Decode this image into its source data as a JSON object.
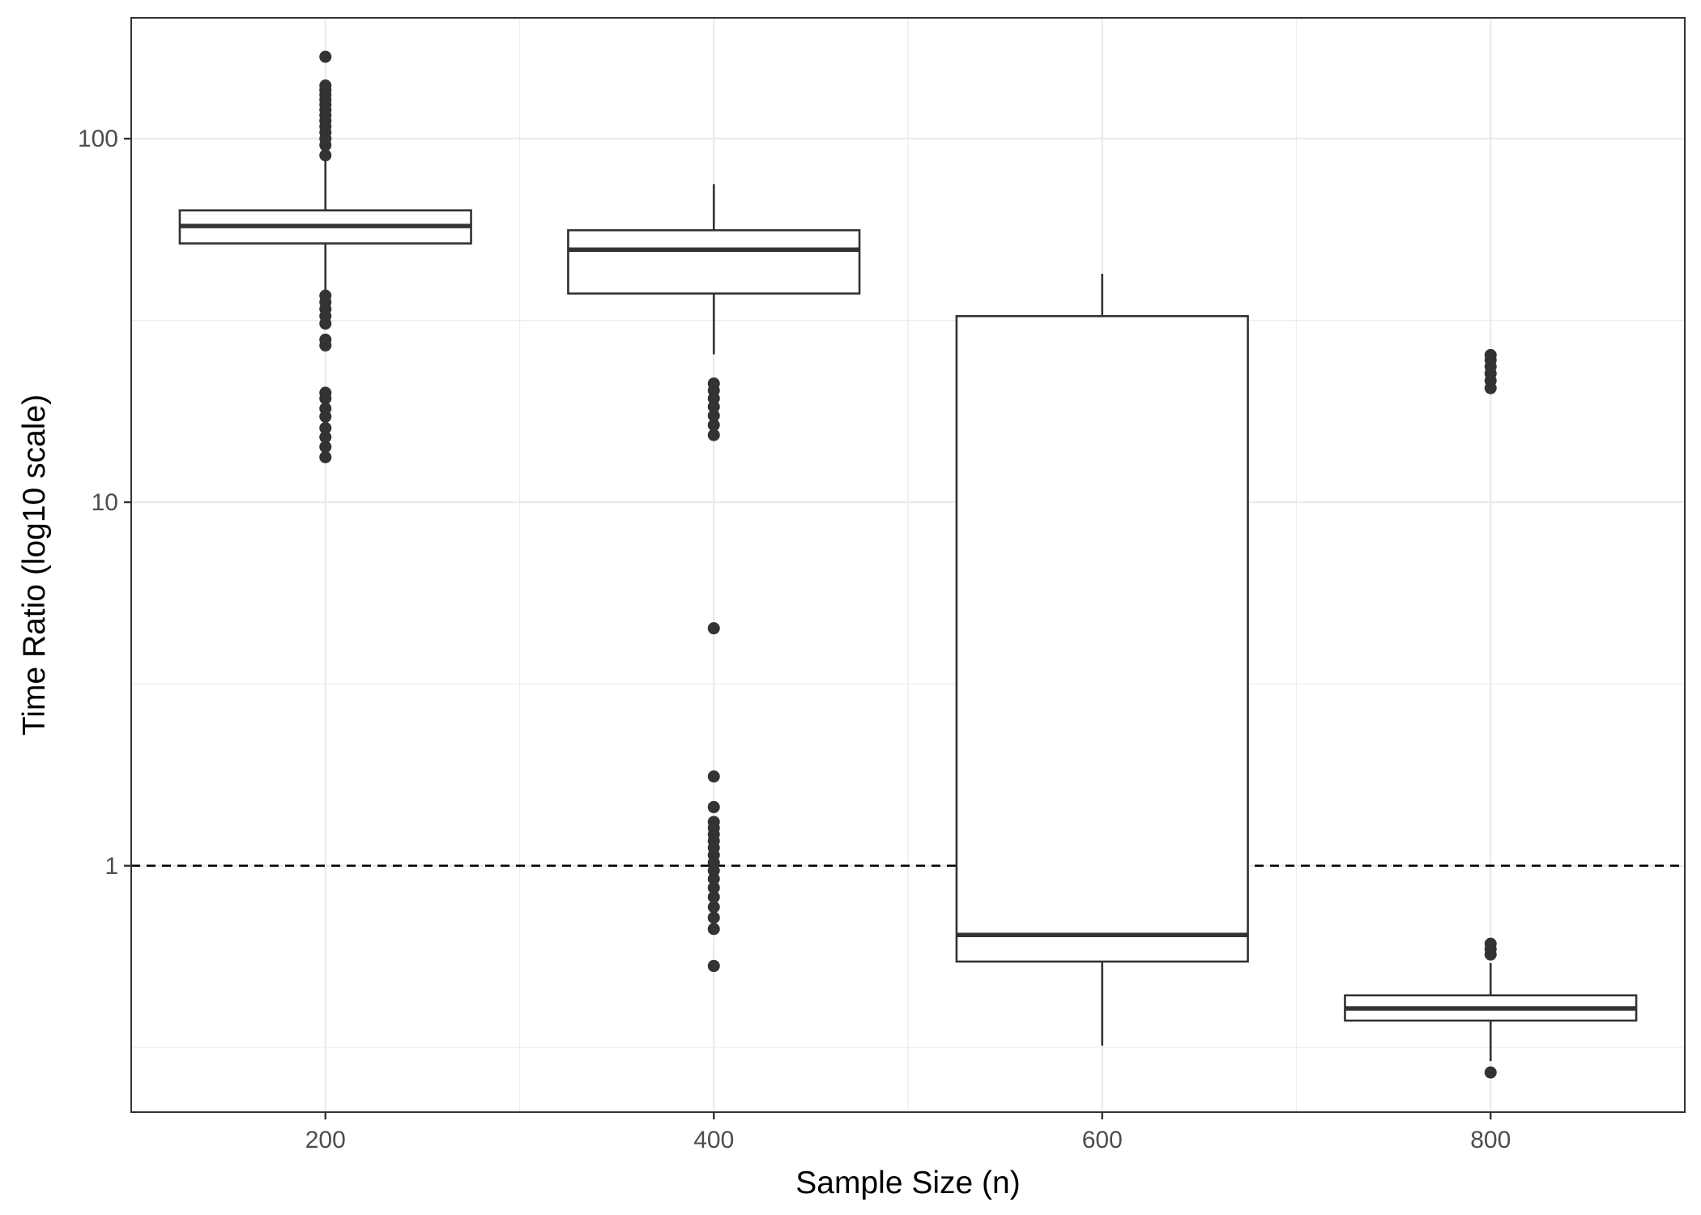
{
  "chart_data": {
    "type": "boxplot",
    "xlabel": "Sample Size (n)",
    "ylabel": "Time Ratio (log10 scale)",
    "x_scale": "continuous",
    "x_ticks": [
      200,
      400,
      600,
      800
    ],
    "xlim": [
      100,
      900
    ],
    "y_scale": "log10",
    "y_ticks": [
      1,
      10,
      100
    ],
    "y_tick_labels": [
      "1",
      "10",
      "100"
    ],
    "ylim": [
      0.21,
      215
    ],
    "grid": true,
    "box_width": 150,
    "reference_line": {
      "y": 1,
      "style": "dashed"
    },
    "boxes": [
      {
        "x": 200,
        "whisker_low": 38,
        "q1": 51.5,
        "median": 57.5,
        "q3": 63.5,
        "whisker_high": 87,
        "outliers": [
          13.3,
          14.2,
          15.1,
          16.0,
          17.2,
          18.1,
          19.3,
          20.0,
          27.0,
          28.0,
          31.0,
          32.5,
          34.0,
          35.5,
          37.0,
          90,
          96,
          100,
          104,
          108,
          112,
          116,
          120,
          124,
          128,
          132,
          136,
          140,
          168
        ]
      },
      {
        "x": 400,
        "whisker_low": 25.5,
        "q1": 37.5,
        "median": 49.5,
        "q3": 56,
        "whisker_high": 75,
        "outliers": [
          0.53,
          0.67,
          0.72,
          0.77,
          0.82,
          0.87,
          0.92,
          0.97,
          1.02,
          1.07,
          1.12,
          1.17,
          1.22,
          1.27,
          1.32,
          1.45,
          1.76,
          4.5,
          15.3,
          16.3,
          17.3,
          18.3,
          19.3,
          20.3,
          21.2
        ]
      },
      {
        "x": 600,
        "whisker_low": 0.32,
        "q1": 0.545,
        "median": 0.645,
        "q3": 32.5,
        "whisker_high": 42.5,
        "outliers": []
      },
      {
        "x": 800,
        "whisker_low": 0.29,
        "q1": 0.375,
        "median": 0.405,
        "q3": 0.44,
        "whisker_high": 0.54,
        "outliers": [
          0.27,
          0.57,
          0.59,
          0.61,
          20.6,
          21.6,
          22.6,
          23.6,
          24.6,
          25.4
        ]
      }
    ]
  },
  "colors": {
    "box_line": "#333333",
    "outlier": "#333333",
    "grid": "#ebebeb",
    "panel_border": "#333333",
    "reference_line": "#000000",
    "tick_label": "#4d4d4d",
    "axis_title": "#000000",
    "background": "#ffffff"
  }
}
